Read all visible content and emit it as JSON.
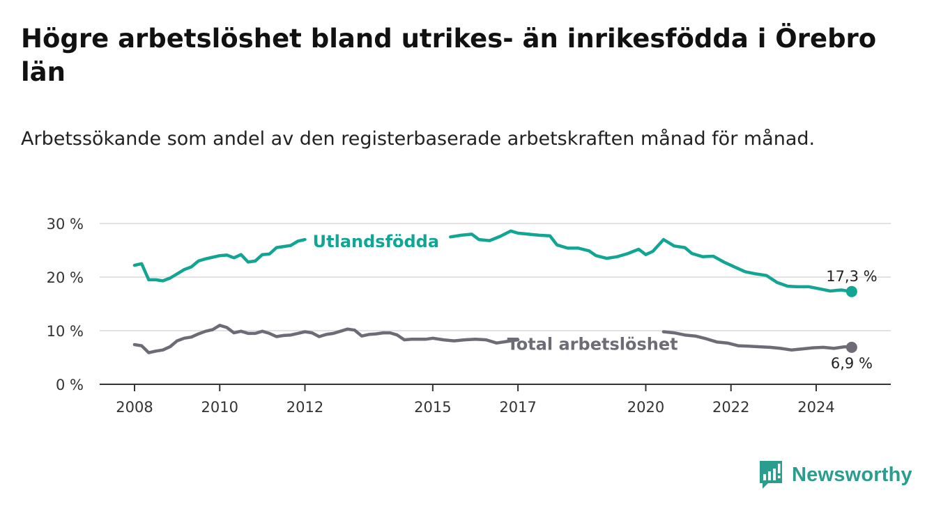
{
  "title": "Högre arbetslöshet bland utrikes- än inrikesfödda i Örebro län",
  "subtitle": "Arbetssökande som andel av den registerbaserade arbetskraften månad för månad.",
  "logo": {
    "text": "Newsworthy",
    "icon": "newsworthy-bar-chart-icon"
  },
  "colors": {
    "foreign_born": "#12a594",
    "total": "#6e6b76",
    "grid": "#d9d9d9",
    "axis": "#333333"
  },
  "chart_data": {
    "type": "line",
    "title": "Högre arbetslöshet bland utrikes- än inrikesfödda i Örebro län",
    "subtitle": "Arbetssökande som andel av den registerbaserade arbetskraften månad för månad.",
    "xlabel": "",
    "ylabel": "",
    "xlim": [
      "2008-01",
      "2024-12"
    ],
    "ylim": [
      0,
      30
    ],
    "grid": true,
    "y_ticks": [
      {
        "value": 0,
        "label": "0 %"
      },
      {
        "value": 10,
        "label": "10 %"
      },
      {
        "value": 20,
        "label": "20 %"
      },
      {
        "value": 30,
        "label": "30 %"
      }
    ],
    "x_ticks": [
      {
        "value": "2008-01",
        "label": "2008"
      },
      {
        "value": "2010-01",
        "label": "2010"
      },
      {
        "value": "2012-01",
        "label": "2012"
      },
      {
        "value": "2015-01",
        "label": "2015"
      },
      {
        "value": "2017-01",
        "label": "2017"
      },
      {
        "value": "2020-01",
        "label": "2020"
      },
      {
        "value": "2022-01",
        "label": "2022"
      },
      {
        "value": "2024-01",
        "label": "2024"
      }
    ],
    "series": [
      {
        "name": "Utlandsfödda",
        "color": "#12a594",
        "end_label": "17,3 %",
        "points": [
          [
            "2008-01",
            22.2
          ],
          [
            "2008-03",
            22.5
          ],
          [
            "2008-05",
            19.5
          ],
          [
            "2008-07",
            19.5
          ],
          [
            "2008-09",
            19.3
          ],
          [
            "2008-11",
            19.8
          ],
          [
            "2009-01",
            20.6
          ],
          [
            "2009-03",
            21.4
          ],
          [
            "2009-05",
            21.9
          ],
          [
            "2009-07",
            23.0
          ],
          [
            "2009-09",
            23.4
          ],
          [
            "2009-11",
            23.7
          ],
          [
            "2010-01",
            24.0
          ],
          [
            "2010-03",
            24.1
          ],
          [
            "2010-05",
            23.6
          ],
          [
            "2010-07",
            24.2
          ],
          [
            "2010-09",
            22.8
          ],
          [
            "2010-11",
            23.0
          ],
          [
            "2011-01",
            24.2
          ],
          [
            "2011-03",
            24.3
          ],
          [
            "2011-05",
            25.5
          ],
          [
            "2011-07",
            25.7
          ],
          [
            "2011-09",
            25.9
          ],
          [
            "2011-11",
            26.7
          ],
          [
            "2012-01",
            27.0
          ],
          [
            "2015-06",
            27.5
          ],
          [
            "2015-09",
            27.8
          ],
          [
            "2015-12",
            28.0
          ],
          [
            "2016-02",
            27.0
          ],
          [
            "2016-05",
            26.8
          ],
          [
            "2016-08",
            27.6
          ],
          [
            "2016-11",
            28.6
          ],
          [
            "2017-01",
            28.2
          ],
          [
            "2017-04",
            28.0
          ],
          [
            "2017-07",
            27.8
          ],
          [
            "2017-10",
            27.7
          ],
          [
            "2017-12",
            26.0
          ],
          [
            "2018-03",
            25.4
          ],
          [
            "2018-06",
            25.4
          ],
          [
            "2018-09",
            24.9
          ],
          [
            "2018-11",
            24.0
          ],
          [
            "2019-02",
            23.5
          ],
          [
            "2019-05",
            23.8
          ],
          [
            "2019-08",
            24.4
          ],
          [
            "2019-11",
            25.2
          ],
          [
            "2020-01",
            24.2
          ],
          [
            "2020-03",
            24.8
          ],
          [
            "2020-06",
            27.0
          ],
          [
            "2020-09",
            25.8
          ],
          [
            "2020-12",
            25.5
          ],
          [
            "2021-02",
            24.4
          ],
          [
            "2021-05",
            23.8
          ],
          [
            "2021-08",
            23.9
          ],
          [
            "2021-11",
            22.8
          ],
          [
            "2022-02",
            21.9
          ],
          [
            "2022-05",
            21.0
          ],
          [
            "2022-08",
            20.6
          ],
          [
            "2022-11",
            20.3
          ],
          [
            "2023-02",
            19.0
          ],
          [
            "2023-05",
            18.3
          ],
          [
            "2023-08",
            18.2
          ],
          [
            "2023-11",
            18.2
          ],
          [
            "2024-02",
            17.8
          ],
          [
            "2024-05",
            17.4
          ],
          [
            "2024-08",
            17.6
          ],
          [
            "2024-11",
            17.3
          ]
        ]
      },
      {
        "name": "Total arbetslöshet",
        "color": "#6e6b76",
        "end_label": "6,9 %",
        "points": [
          [
            "2008-01",
            7.4
          ],
          [
            "2008-03",
            7.2
          ],
          [
            "2008-05",
            5.9
          ],
          [
            "2008-07",
            6.2
          ],
          [
            "2008-09",
            6.4
          ],
          [
            "2008-11",
            7.0
          ],
          [
            "2009-01",
            8.1
          ],
          [
            "2009-03",
            8.6
          ],
          [
            "2009-05",
            8.8
          ],
          [
            "2009-07",
            9.4
          ],
          [
            "2009-09",
            9.9
          ],
          [
            "2009-11",
            10.2
          ],
          [
            "2010-01",
            11.0
          ],
          [
            "2010-03",
            10.6
          ],
          [
            "2010-05",
            9.6
          ],
          [
            "2010-07",
            9.9
          ],
          [
            "2010-09",
            9.5
          ],
          [
            "2010-11",
            9.5
          ],
          [
            "2011-01",
            9.9
          ],
          [
            "2011-03",
            9.5
          ],
          [
            "2011-05",
            8.9
          ],
          [
            "2011-07",
            9.1
          ],
          [
            "2011-09",
            9.2
          ],
          [
            "2011-11",
            9.5
          ],
          [
            "2012-01",
            9.8
          ],
          [
            "2012-03",
            9.6
          ],
          [
            "2012-05",
            8.9
          ],
          [
            "2012-07",
            9.3
          ],
          [
            "2012-09",
            9.5
          ],
          [
            "2012-11",
            9.9
          ],
          [
            "2013-01",
            10.3
          ],
          [
            "2013-03",
            10.1
          ],
          [
            "2013-05",
            9.0
          ],
          [
            "2013-07",
            9.3
          ],
          [
            "2013-09",
            9.4
          ],
          [
            "2013-11",
            9.6
          ],
          [
            "2014-01",
            9.6
          ],
          [
            "2014-03",
            9.2
          ],
          [
            "2014-05",
            8.3
          ],
          [
            "2014-07",
            8.4
          ],
          [
            "2014-09",
            8.4
          ],
          [
            "2014-11",
            8.4
          ],
          [
            "2015-01",
            8.6
          ],
          [
            "2015-04",
            8.3
          ],
          [
            "2015-07",
            8.1
          ],
          [
            "2015-10",
            8.3
          ],
          [
            "2016-01",
            8.4
          ],
          [
            "2016-04",
            8.3
          ],
          [
            "2016-07",
            7.7
          ],
          [
            "2016-10",
            8.0
          ],
          [
            "2017-01",
            8.3
          ],
          [
            "2020-06",
            9.8
          ],
          [
            "2020-09",
            9.6
          ],
          [
            "2020-12",
            9.2
          ],
          [
            "2021-03",
            9.0
          ],
          [
            "2021-06",
            8.5
          ],
          [
            "2021-09",
            7.9
          ],
          [
            "2021-12",
            7.7
          ],
          [
            "2022-03",
            7.2
          ],
          [
            "2022-06",
            7.1
          ],
          [
            "2022-09",
            7.0
          ],
          [
            "2022-12",
            6.9
          ],
          [
            "2023-03",
            6.7
          ],
          [
            "2023-06",
            6.4
          ],
          [
            "2023-09",
            6.6
          ],
          [
            "2023-12",
            6.8
          ],
          [
            "2024-03",
            6.9
          ],
          [
            "2024-06",
            6.7
          ],
          [
            "2024-09",
            7.0
          ],
          [
            "2024-11",
            6.9
          ]
        ]
      }
    ],
    "annotations": [
      {
        "series": 0,
        "text": "Utlandsfödda",
        "x": "2013-09",
        "y": 26.6,
        "bold": true
      },
      {
        "series": 1,
        "text": "Total arbetslöshet",
        "x": "2018-10",
        "y": 7.5,
        "bold": true
      }
    ]
  }
}
